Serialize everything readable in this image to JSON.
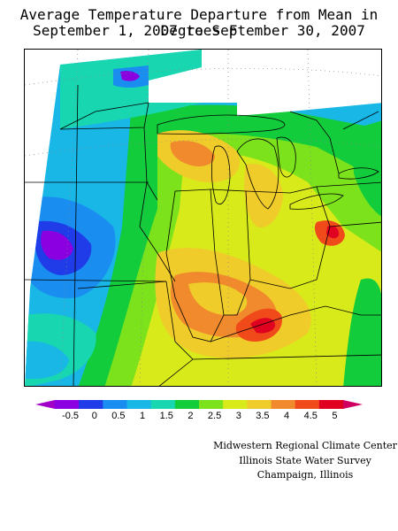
{
  "title": {
    "line1": "Average Temperature Departure from Mean in Degrees F",
    "line2": "September 1, 2007 to September 30, 2007"
  },
  "legend": {
    "labels": [
      "-0.5",
      "0",
      "0.5",
      "1",
      "1.5",
      "2",
      "2.5",
      "3",
      "3.5",
      "4",
      "4.5",
      "5"
    ],
    "colors": [
      "#8a00e0",
      "#1f3ce8",
      "#1a8ef0",
      "#19b7e6",
      "#18d6b0",
      "#12cc3c",
      "#7ce21c",
      "#d8ea1a",
      "#f0cc2a",
      "#f08a2c",
      "#f04a1a",
      "#e00020"
    ],
    "end_color_low": "#a000c8",
    "end_color_high": "#d00060"
  },
  "credits": {
    "line1": "Midwestern Regional Climate Center",
    "line2": "Illinois State Water Survey",
    "line3": "Champaign, Illinois"
  }
}
